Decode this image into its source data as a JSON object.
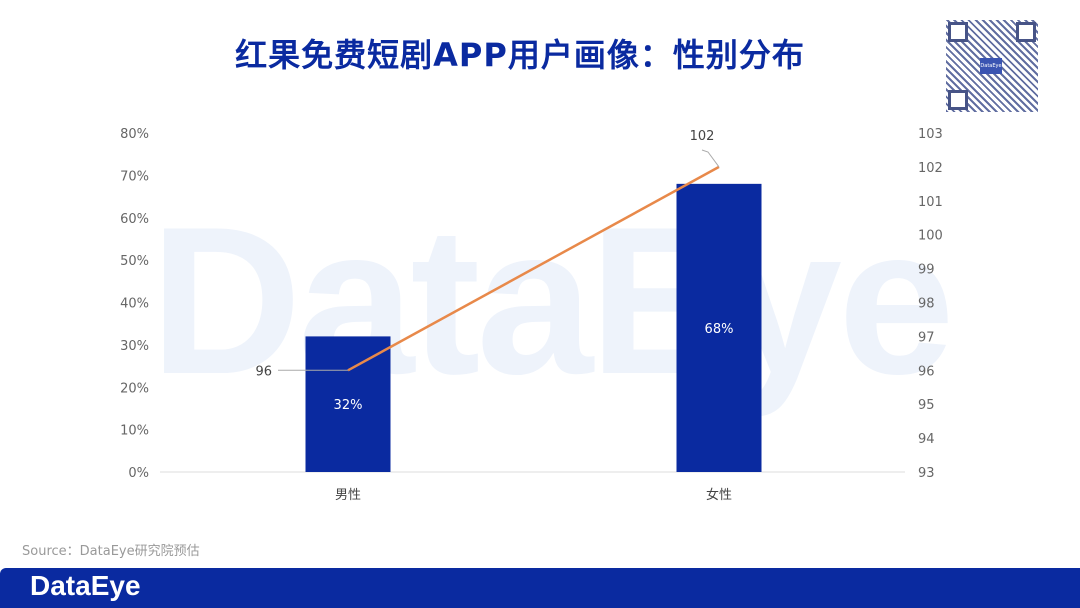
{
  "title": "红果免费短剧APP用户画像：性别分布",
  "source": "Source：DataEye研究院预估",
  "footer_logo": "DataEye",
  "watermark": "DataEye",
  "qr_label": "DataEye",
  "chart_data": {
    "type": "bar+line",
    "categories": [
      "男性",
      "女性"
    ],
    "series": [
      {
        "name": "share",
        "type": "bar",
        "axis": "left",
        "values": [
          32,
          68
        ],
        "labels": [
          "32%",
          "68%"
        ],
        "color": "#0a2aa0"
      },
      {
        "name": "index",
        "type": "line",
        "axis": "right",
        "values": [
          96,
          102
        ],
        "labels": [
          "96",
          "102"
        ],
        "color": "#e8894a"
      }
    ],
    "left_axis": {
      "ylim": [
        0,
        80
      ],
      "ticks": [
        "0%",
        "10%",
        "20%",
        "30%",
        "40%",
        "50%",
        "60%",
        "70%",
        "80%"
      ]
    },
    "right_axis": {
      "ylim": [
        93,
        103
      ],
      "ticks": [
        "93",
        "94",
        "95",
        "96",
        "97",
        "98",
        "99",
        "100",
        "101",
        "102",
        "103"
      ]
    },
    "grid": false
  }
}
